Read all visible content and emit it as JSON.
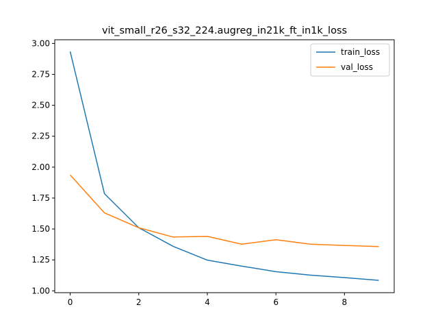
{
  "chart_data": {
    "type": "line",
    "title": "vit_small_r26_s32_224.augreg_in21k_ft_in1k_loss",
    "xlabel": "",
    "ylabel": "",
    "x": [
      0,
      1,
      2,
      3,
      4,
      5,
      6,
      7,
      8,
      9
    ],
    "xlim": [
      -0.45,
      9.45
    ],
    "ylim": [
      0.985,
      3.03
    ],
    "xticks": [
      0,
      2,
      4,
      6,
      8
    ],
    "yticks": [
      1.0,
      1.25,
      1.5,
      1.75,
      2.0,
      2.25,
      2.5,
      2.75,
      3.0
    ],
    "ytick_labels": [
      "1.00",
      "1.25",
      "1.50",
      "1.75",
      "2.00",
      "2.25",
      "2.50",
      "2.75",
      "3.00"
    ],
    "grid": false,
    "legend_position": "top-right",
    "series": [
      {
        "name": "train_loss",
        "color": "#1f77b4",
        "values": [
          2.935,
          1.785,
          1.51,
          1.36,
          1.248,
          1.2,
          1.155,
          1.127,
          1.107,
          1.085
        ]
      },
      {
        "name": "val_loss",
        "color": "#ff7f0e",
        "values": [
          1.937,
          1.63,
          1.51,
          1.435,
          1.44,
          1.377,
          1.413,
          1.377,
          1.367,
          1.358
        ]
      }
    ]
  }
}
